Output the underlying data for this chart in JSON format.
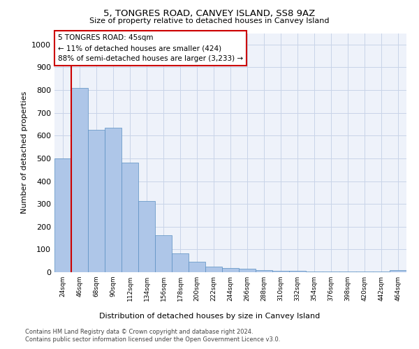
{
  "title": "5, TONGRES ROAD, CANVEY ISLAND, SS8 9AZ",
  "subtitle": "Size of property relative to detached houses in Canvey Island",
  "xlabel": "Distribution of detached houses by size in Canvey Island",
  "ylabel": "Number of detached properties",
  "categories": [
    "24sqm",
    "46sqm",
    "68sqm",
    "90sqm",
    "112sqm",
    "134sqm",
    "156sqm",
    "178sqm",
    "200sqm",
    "222sqm",
    "244sqm",
    "266sqm",
    "288sqm",
    "310sqm",
    "332sqm",
    "354sqm",
    "376sqm",
    "398sqm",
    "420sqm",
    "442sqm",
    "464sqm"
  ],
  "values": [
    500,
    810,
    625,
    635,
    480,
    313,
    163,
    82,
    45,
    23,
    18,
    14,
    10,
    7,
    5,
    4,
    3,
    3,
    2,
    2,
    8
  ],
  "bar_color": "#aec6e8",
  "bar_edge_color": "#5a8fc2",
  "marker_label": "5 TONGRES ROAD: 45sqm",
  "annotation_line1": "← 11% of detached houses are smaller (424)",
  "annotation_line2": "88% of semi-detached houses are larger (3,233) →",
  "annotation_box_color": "#ffffff",
  "annotation_box_edge_color": "#cc0000",
  "vline_color": "#cc0000",
  "grid_color": "#c8d4e8",
  "bg_color": "#eef2fa",
  "ylim": [
    0,
    1050
  ],
  "yticks": [
    0,
    100,
    200,
    300,
    400,
    500,
    600,
    700,
    800,
    900,
    1000
  ],
  "footnote1": "Contains HM Land Registry data © Crown copyright and database right 2024.",
  "footnote2": "Contains public sector information licensed under the Open Government Licence v3.0."
}
